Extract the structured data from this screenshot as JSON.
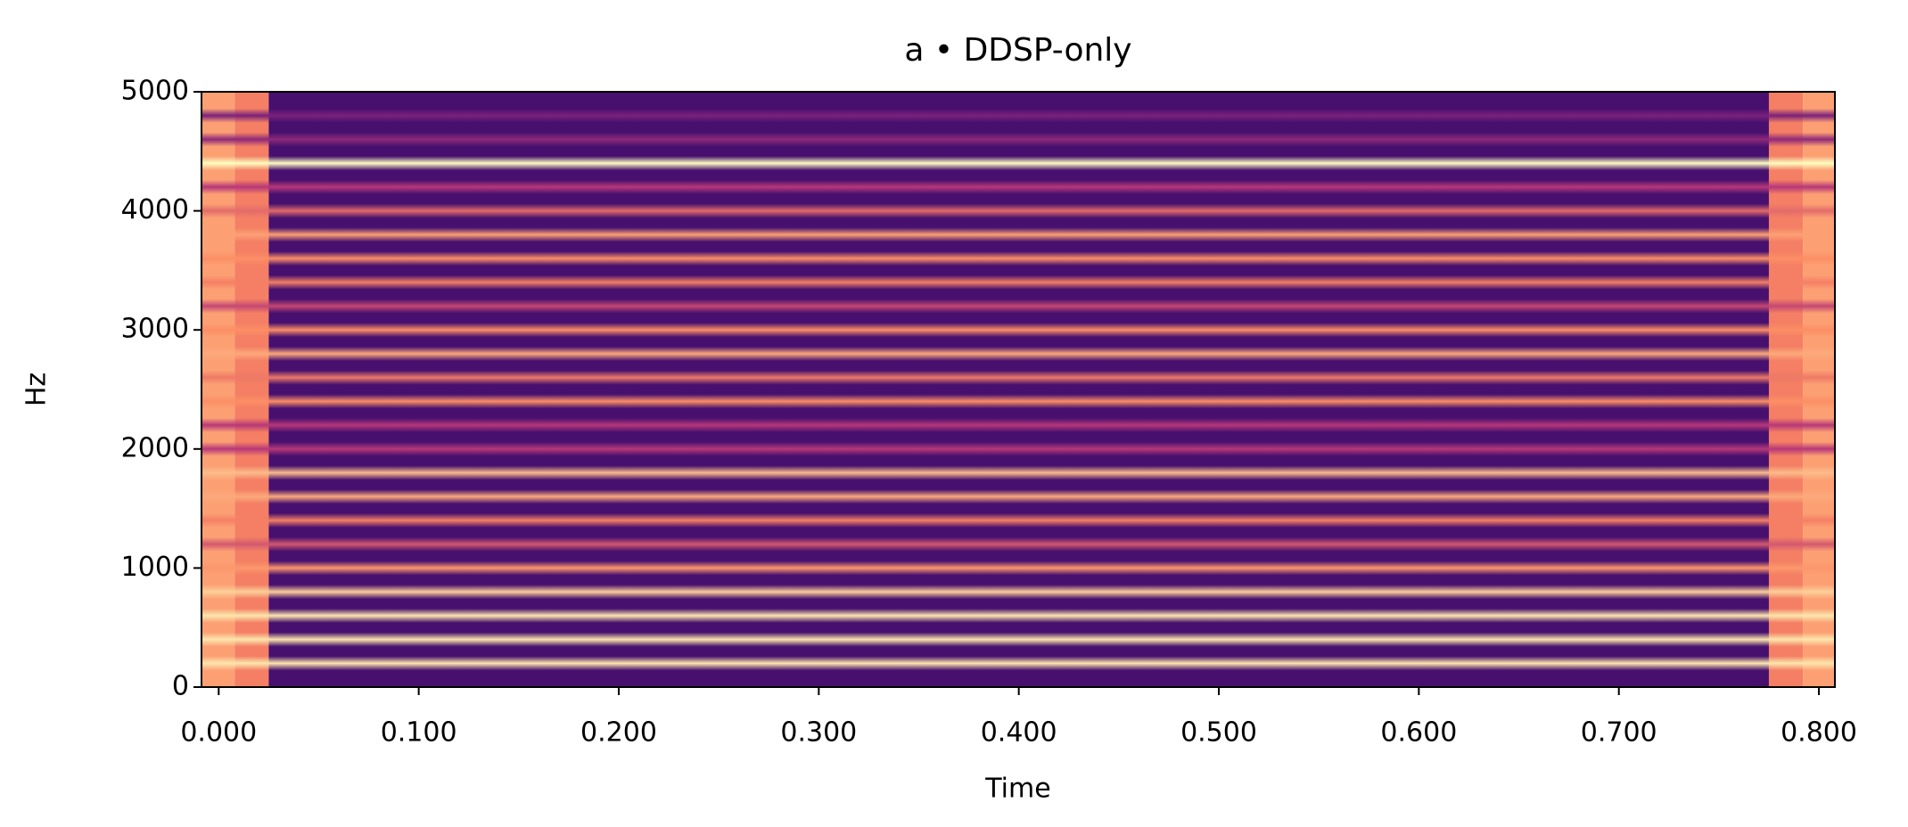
{
  "chart_data": {
    "type": "spectrogram",
    "title": "a • DDSP-only",
    "x_label": "Time",
    "y_label": "Hz",
    "xlim": [
      -0.0086,
      0.808
    ],
    "ylim": [
      0,
      5000
    ],
    "xticks": [
      {
        "value": 0,
        "label": "0.000"
      },
      {
        "value": 0.1,
        "label": "0.100"
      },
      {
        "value": 0.2,
        "label": "0.200"
      },
      {
        "value": 0.3,
        "label": "0.300"
      },
      {
        "value": 0.4,
        "label": "0.400"
      },
      {
        "value": 0.5,
        "label": "0.500"
      },
      {
        "value": 0.6,
        "label": "0.600"
      },
      {
        "value": 0.7,
        "label": "0.700"
      },
      {
        "value": 0.8,
        "label": "0.800"
      }
    ],
    "yticks": [
      0,
      1000,
      2000,
      3000,
      4000,
      5000
    ],
    "colormap": "magma",
    "frame_edges": [
      -0.0086,
      0.008,
      0.025,
      0.775,
      0.792,
      0.808
    ],
    "frame_levels": [
      0.8,
      0.72,
      0.22,
      0.72,
      0.8
    ],
    "harmonic_freqs": [
      200,
      400,
      600,
      800,
      1000,
      1200,
      1400,
      1600,
      1800,
      2000,
      2200,
      2400,
      2600,
      2800,
      3000,
      3200,
      3400,
      3600,
      3800,
      4000,
      4200,
      4400,
      4600,
      4800
    ],
    "harmonic_levels": [
      0.95,
      0.95,
      0.95,
      0.9,
      0.78,
      0.6,
      0.72,
      0.82,
      0.86,
      0.5,
      0.5,
      0.76,
      0.7,
      0.82,
      0.76,
      0.55,
      0.72,
      0.76,
      0.8,
      0.66,
      0.5,
      1.0,
      0.4,
      0.35
    ]
  }
}
